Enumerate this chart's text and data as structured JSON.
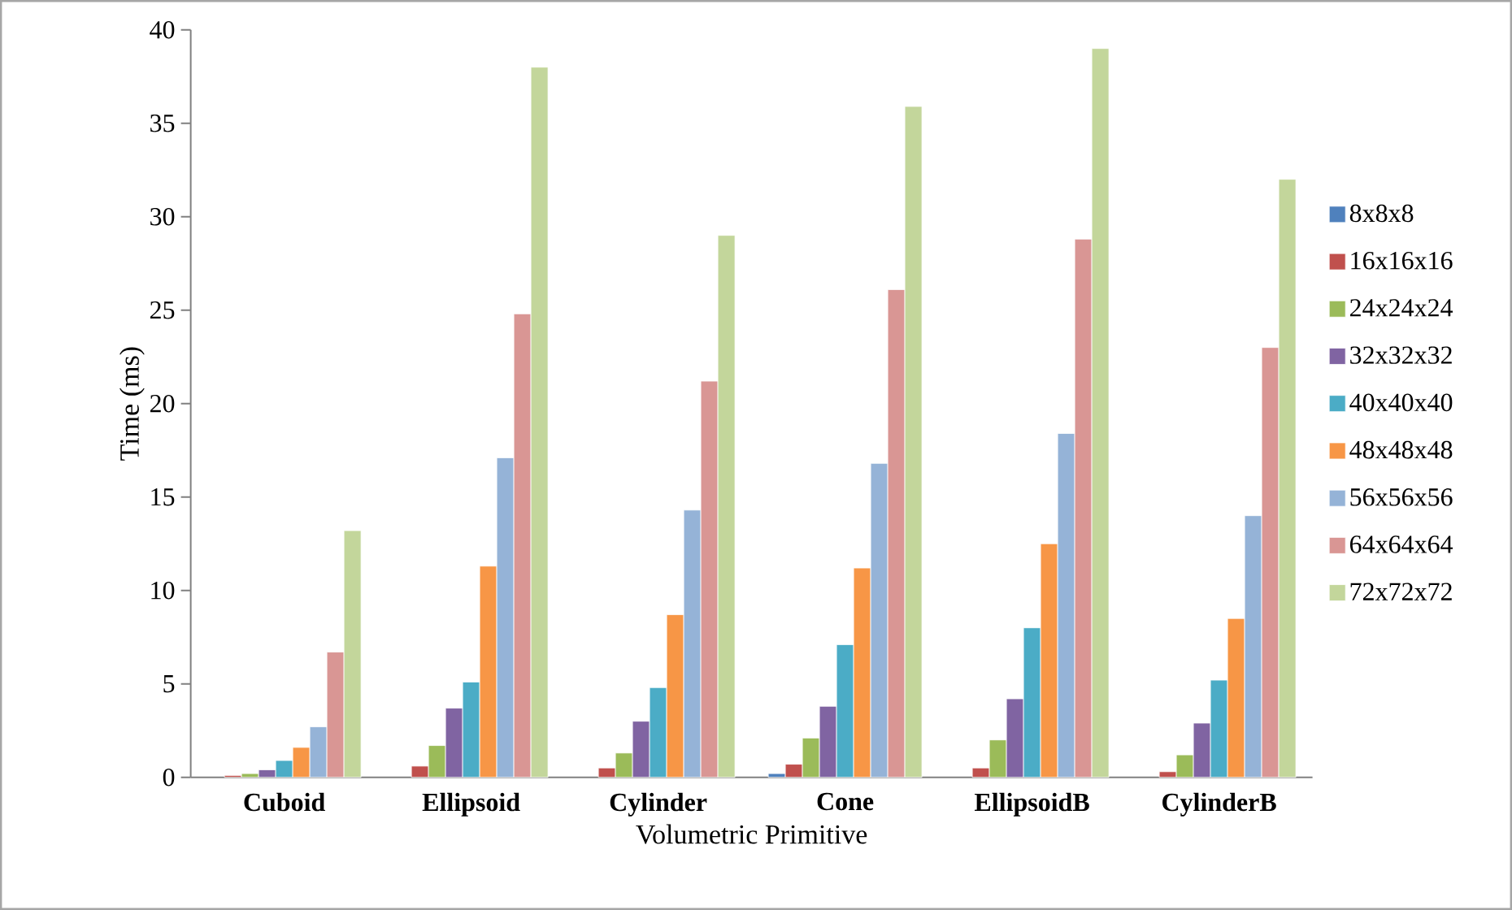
{
  "chart_data": {
    "type": "bar",
    "xlabel": "Volumetric Primitive",
    "ylabel": "Time (ms)",
    "categories": [
      "Cuboid",
      "Ellipsoid",
      "Cylinder",
      "Cone",
      "EllipsoidB",
      "CylinderB"
    ],
    "ylim": [
      0,
      40
    ],
    "yticks": [
      0,
      5,
      10,
      15,
      20,
      25,
      30,
      35,
      40
    ],
    "grid": false,
    "legend": "right",
    "series": [
      {
        "name": "8x8x8",
        "color": "#4f81bd",
        "values": [
          null,
          null,
          null,
          0.2,
          null,
          null
        ]
      },
      {
        "name": "16x16x16",
        "color": "#c0504d",
        "values": [
          0.1,
          0.6,
          0.5,
          0.7,
          0.5,
          0.3
        ]
      },
      {
        "name": "24x24x24",
        "color": "#9bbb59",
        "values": [
          0.2,
          1.7,
          1.3,
          2.1,
          2.0,
          1.2
        ]
      },
      {
        "name": "32x32x32",
        "color": "#8064a2",
        "values": [
          0.4,
          3.7,
          3.0,
          3.8,
          4.2,
          2.9
        ]
      },
      {
        "name": "40x40x40",
        "color": "#4bacc6",
        "values": [
          0.9,
          5.1,
          4.8,
          7.1,
          8.0,
          5.2
        ]
      },
      {
        "name": "48x48x48",
        "color": "#f79646",
        "values": [
          1.6,
          11.3,
          8.7,
          11.2,
          12.5,
          8.5
        ]
      },
      {
        "name": "56x56x56",
        "color": "#95b3d7",
        "values": [
          2.7,
          17.1,
          14.3,
          16.8,
          18.4,
          14.0
        ]
      },
      {
        "name": "64x64x64",
        "color": "#d99694",
        "values": [
          6.7,
          24.8,
          21.2,
          26.1,
          28.8,
          23.0
        ]
      },
      {
        "name": "72x72x72",
        "color": "#c3d69b",
        "values": [
          13.2,
          38,
          29,
          35.9,
          39,
          32
        ]
      }
    ]
  }
}
